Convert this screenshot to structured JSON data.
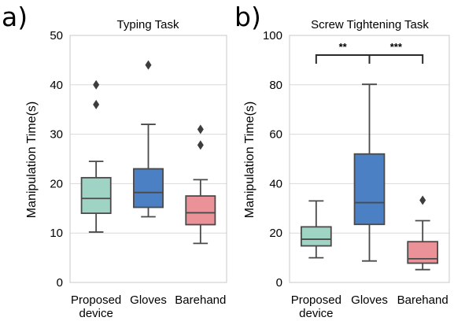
{
  "chart_data": [
    {
      "type": "box",
      "panel_label": "a)",
      "title": "Typing Task",
      "xlabel": "",
      "ylabel": "Manipulation Time(s)",
      "ylim": [
        0,
        50
      ],
      "yticks": [
        0,
        10,
        20,
        30,
        40,
        50
      ],
      "grid": "horizontal",
      "categories": [
        "Proposed\ndevice",
        "Gloves",
        "Barehand"
      ],
      "colors": [
        "#9fd4c4",
        "#4c80c4",
        "#ea9297"
      ],
      "boxes": [
        {
          "whislo": 10.2,
          "q1": 14.0,
          "med": 17.0,
          "q3": 21.2,
          "whishi": 24.5,
          "fliers": [
            36.0,
            40.0
          ]
        },
        {
          "whislo": 13.3,
          "q1": 15.2,
          "med": 18.2,
          "q3": 23.0,
          "whishi": 32.0,
          "fliers": [
            44.0
          ]
        },
        {
          "whislo": 7.9,
          "q1": 11.7,
          "med": 14.1,
          "q3": 17.5,
          "whishi": 20.8,
          "fliers": [
            27.8,
            31.0
          ]
        }
      ],
      "significance": []
    },
    {
      "type": "box",
      "panel_label": "b)",
      "title": "Screw Tightening Task",
      "xlabel": "",
      "ylabel": "Manipulation Time(s)",
      "ylim": [
        0,
        100
      ],
      "yticks": [
        0,
        20,
        40,
        60,
        80,
        100
      ],
      "grid": "horizontal",
      "categories": [
        "Proposed\ndevice",
        "Gloves",
        "Barehand"
      ],
      "colors": [
        "#9fd4c4",
        "#4c80c4",
        "#ea9297"
      ],
      "boxes": [
        {
          "whislo": 10.0,
          "q1": 14.8,
          "med": 17.5,
          "q3": 22.5,
          "whishi": 33.0,
          "fliers": []
        },
        {
          "whislo": 8.7,
          "q1": 23.5,
          "med": 32.3,
          "q3": 52.0,
          "whishi": 80.2,
          "fliers": []
        },
        {
          "whislo": 5.2,
          "q1": 7.8,
          "med": 9.6,
          "q3": 16.5,
          "whishi": 25.0,
          "fliers": [
            33.3
          ]
        }
      ],
      "significance": [
        {
          "from": 0,
          "to": 1,
          "label": "**"
        },
        {
          "from": 1,
          "to": 2,
          "label": "***"
        }
      ]
    }
  ]
}
